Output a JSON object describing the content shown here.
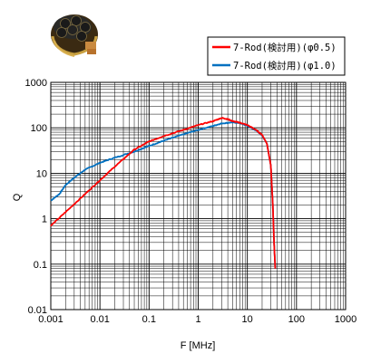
{
  "chart_data": {
    "type": "line",
    "title": "",
    "xlabel": "F [MHz]",
    "ylabel": "Q",
    "x_scale": "log",
    "y_scale": "log",
    "xlim": [
      0.001,
      1000
    ],
    "ylim": [
      0.01,
      1000
    ],
    "x_tick_labels": [
      "0.001",
      "0.01",
      "0.1",
      "1",
      "10",
      "100",
      "1000"
    ],
    "y_tick_labels": [
      "0.01",
      "0.1",
      "1",
      "10",
      "100",
      "1000"
    ],
    "grid": true,
    "legend_position": "top-right",
    "series": [
      {
        "name": "7-Rod(検討用)(φ0.5)",
        "color": "#ff0000",
        "x": [
          0.001,
          0.002,
          0.005,
          0.01,
          0.02,
          0.05,
          0.1,
          0.2,
          0.5,
          1,
          2,
          3,
          4,
          5,
          7,
          10,
          15,
          20,
          25,
          30,
          33,
          35,
          37
        ],
        "y": [
          0.7,
          1.4,
          3.5,
          7,
          14,
          33,
          50,
          66,
          90,
          115,
          140,
          165,
          155,
          140,
          130,
          115,
          90,
          70,
          45,
          15,
          2,
          0.3,
          0.08
        ]
      },
      {
        "name": "7-Rod(検討用)(φ1.0)",
        "color": "#0070c0",
        "x": [
          0.001,
          0.0015,
          0.002,
          0.003,
          0.005,
          0.01,
          0.02,
          0.05,
          0.1,
          0.2,
          0.5,
          1,
          2,
          3,
          5,
          7,
          10,
          15,
          20,
          25,
          30,
          33,
          35,
          37
        ],
        "y": [
          2.5,
          3.5,
          5.5,
          8,
          12,
          17,
          22,
          30,
          40,
          52,
          72,
          90,
          110,
          125,
          132,
          128,
          110,
          88,
          68,
          45,
          15,
          2,
          0.3,
          0.08
        ]
      }
    ]
  },
  "colors": {
    "series1": "#ff0000",
    "series2": "#0070c0",
    "grid": "#000000"
  }
}
